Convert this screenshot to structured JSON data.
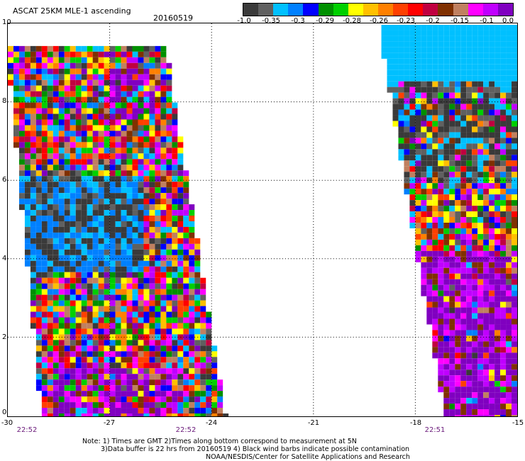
{
  "header": {
    "title": "ASCAT 25KM MLE-1 ascending",
    "date": "20160519"
  },
  "colorbar": {
    "colors": [
      "#3a3a3a",
      "#606060",
      "#00c0ff",
      "#0080ff",
      "#0000ff",
      "#009000",
      "#00d000",
      "#ffff00",
      "#ffc000",
      "#ff8000",
      "#ff4000",
      "#ff0000",
      "#c00040",
      "#803000",
      "#c08060",
      "#ff00ff",
      "#c000ff",
      "#8000c0"
    ],
    "labels": [
      "-1.0",
      "-0.35",
      "-0.3",
      "-0.29",
      "-0.28",
      "-0.26",
      "-0.23",
      "-0.2",
      "-0.15",
      "-0.1",
      "0.0"
    ]
  },
  "axes": {
    "y_ticks": [
      "10",
      "8",
      "6",
      "4",
      "2",
      "0"
    ],
    "x_ticks": [
      "-30",
      "-27",
      "-24",
      "-21",
      "-18",
      "-15"
    ],
    "times": [
      "22:52",
      "22:52",
      "22:51"
    ]
  },
  "notes": {
    "line1": "Note: 1) Times are GMT 2)Times along bottom correspond to measurement at 5N",
    "line2": "3)Data buffer is 22 hrs from 20160519 4) Black wind barbs indicate possible contamination",
    "line3": "NOAA/NESDIS/Center for Satellite Applications and Research"
  }
}
